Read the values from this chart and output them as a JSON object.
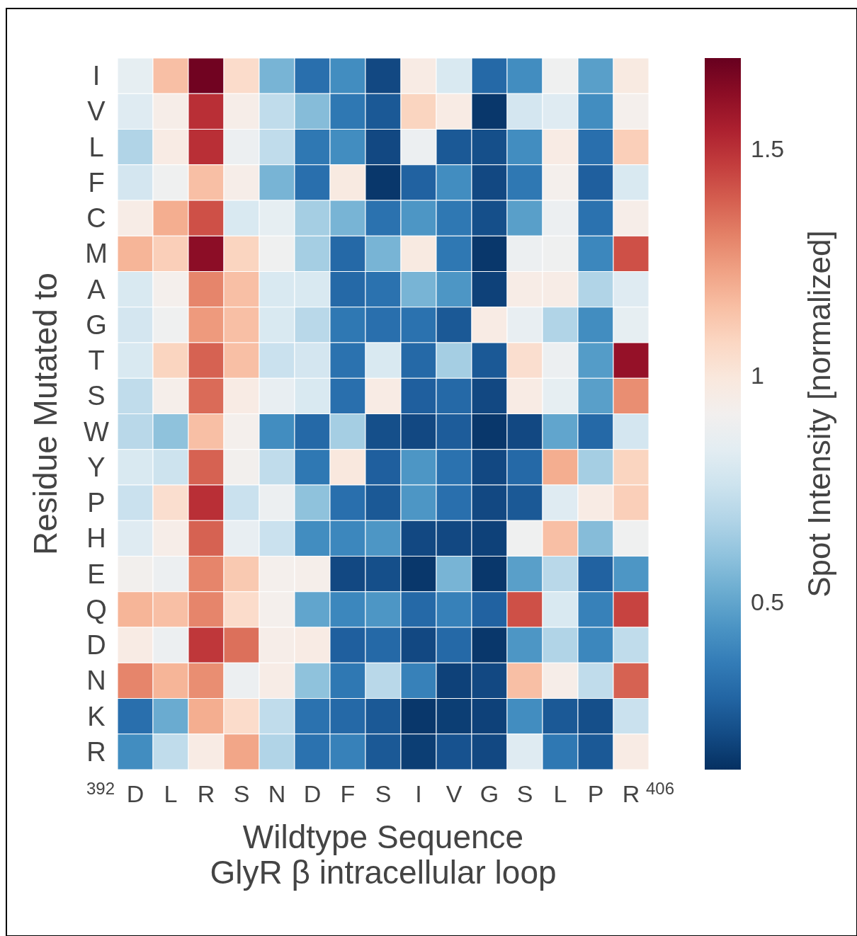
{
  "chart_data": {
    "type": "heatmap",
    "xlabel": "Wildtype Sequence\nGlyR β intracellular loop",
    "ylabel": "Residue Mutated to",
    "clabel": "Spot Intensity [normalized]",
    "annotations": [
      "392",
      "406"
    ],
    "categories": [
      "D",
      "L",
      "R",
      "S",
      "N",
      "D",
      "F",
      "S",
      "I",
      "V",
      "G",
      "S",
      "L",
      "P",
      "R"
    ],
    "y_categories": [
      "I",
      "V",
      "L",
      "F",
      "C",
      "M",
      "A",
      "G",
      "T",
      "S",
      "W",
      "Y",
      "P",
      "H",
      "E",
      "Q",
      "D",
      "N",
      "K",
      "R"
    ],
    "clim": [
      0.13,
      1.7
    ],
    "cticks": [
      0.5,
      1,
      1.5
    ],
    "cells": [
      [
        0.85,
        1.15,
        1.68,
        1.05,
        0.55,
        0.32,
        0.42,
        0.2,
        0.97,
        0.8,
        0.3,
        0.42,
        0.9,
        0.48,
        0.98
      ],
      [
        0.82,
        0.95,
        1.5,
        0.95,
        0.72,
        0.58,
        0.35,
        0.25,
        1.08,
        0.97,
        0.15,
        0.78,
        0.82,
        0.42,
        0.93
      ],
      [
        0.68,
        0.97,
        1.5,
        0.88,
        0.72,
        0.35,
        0.42,
        0.2,
        0.88,
        0.25,
        0.22,
        0.42,
        0.97,
        0.32,
        1.1
      ],
      [
        0.78,
        0.9,
        1.15,
        0.95,
        0.55,
        0.32,
        0.98,
        0.15,
        0.28,
        0.42,
        0.2,
        0.35,
        0.93,
        0.27,
        0.8
      ],
      [
        0.96,
        1.2,
        1.42,
        0.8,
        0.85,
        0.65,
        0.55,
        0.33,
        0.45,
        0.35,
        0.22,
        0.48,
        0.88,
        0.33,
        0.95
      ],
      [
        1.18,
        1.1,
        1.62,
        1.08,
        0.9,
        0.65,
        0.3,
        0.55,
        0.98,
        0.35,
        0.15,
        0.88,
        0.9,
        0.4,
        1.42
      ],
      [
        0.8,
        0.93,
        1.3,
        1.15,
        0.8,
        0.8,
        0.3,
        0.33,
        0.55,
        0.45,
        0.18,
        0.96,
        0.96,
        0.68,
        0.82
      ],
      [
        0.78,
        0.9,
        1.25,
        1.15,
        0.8,
        0.7,
        0.35,
        0.32,
        0.33,
        0.25,
        0.97,
        0.86,
        0.68,
        0.42,
        0.85
      ],
      [
        0.8,
        1.08,
        1.38,
        1.15,
        0.75,
        0.78,
        0.33,
        0.8,
        0.3,
        0.65,
        0.25,
        1.04,
        0.88,
        0.47,
        1.6
      ],
      [
        0.72,
        0.94,
        1.36,
        0.97,
        0.86,
        0.8,
        0.32,
        0.97,
        0.27,
        0.3,
        0.2,
        0.97,
        0.85,
        0.48,
        1.28
      ],
      [
        0.7,
        0.6,
        1.15,
        0.93,
        0.42,
        0.3,
        0.65,
        0.22,
        0.2,
        0.26,
        0.15,
        0.2,
        0.5,
        0.3,
        0.78
      ],
      [
        0.8,
        0.76,
        1.38,
        0.92,
        0.72,
        0.35,
        0.99,
        0.27,
        0.45,
        0.33,
        0.2,
        0.3,
        1.2,
        0.65,
        1.08
      ],
      [
        0.75,
        1.04,
        1.5,
        0.75,
        0.88,
        0.6,
        0.32,
        0.25,
        0.45,
        0.32,
        0.2,
        0.25,
        0.82,
        0.97,
        1.1
      ],
      [
        0.82,
        0.95,
        1.38,
        0.86,
        0.75,
        0.42,
        0.4,
        0.45,
        0.2,
        0.2,
        0.18,
        0.9,
        1.15,
        0.58,
        0.9
      ],
      [
        0.92,
        0.88,
        1.3,
        1.12,
        0.93,
        0.94,
        0.2,
        0.22,
        0.15,
        0.55,
        0.15,
        0.48,
        0.7,
        0.28,
        0.45
      ],
      [
        1.18,
        1.15,
        1.3,
        1.05,
        0.93,
        0.5,
        0.4,
        0.45,
        0.3,
        0.38,
        0.28,
        1.42,
        0.8,
        0.38,
        1.45
      ],
      [
        0.97,
        0.88,
        1.48,
        1.35,
        0.95,
        0.97,
        0.27,
        0.3,
        0.2,
        0.3,
        0.15,
        0.45,
        0.68,
        0.4,
        0.72
      ],
      [
        1.3,
        1.18,
        1.28,
        0.88,
        0.96,
        0.6,
        0.35,
        0.7,
        0.38,
        0.18,
        0.2,
        1.15,
        0.95,
        0.72,
        1.38
      ],
      [
        0.32,
        0.52,
        1.2,
        1.05,
        0.72,
        0.33,
        0.3,
        0.25,
        0.15,
        0.17,
        0.18,
        0.42,
        0.25,
        0.22,
        0.75
      ],
      [
        0.42,
        0.72,
        0.97,
        1.22,
        0.68,
        0.33,
        0.38,
        0.25,
        0.17,
        0.23,
        0.2,
        0.82,
        0.35,
        0.25,
        0.97
      ]
    ]
  }
}
